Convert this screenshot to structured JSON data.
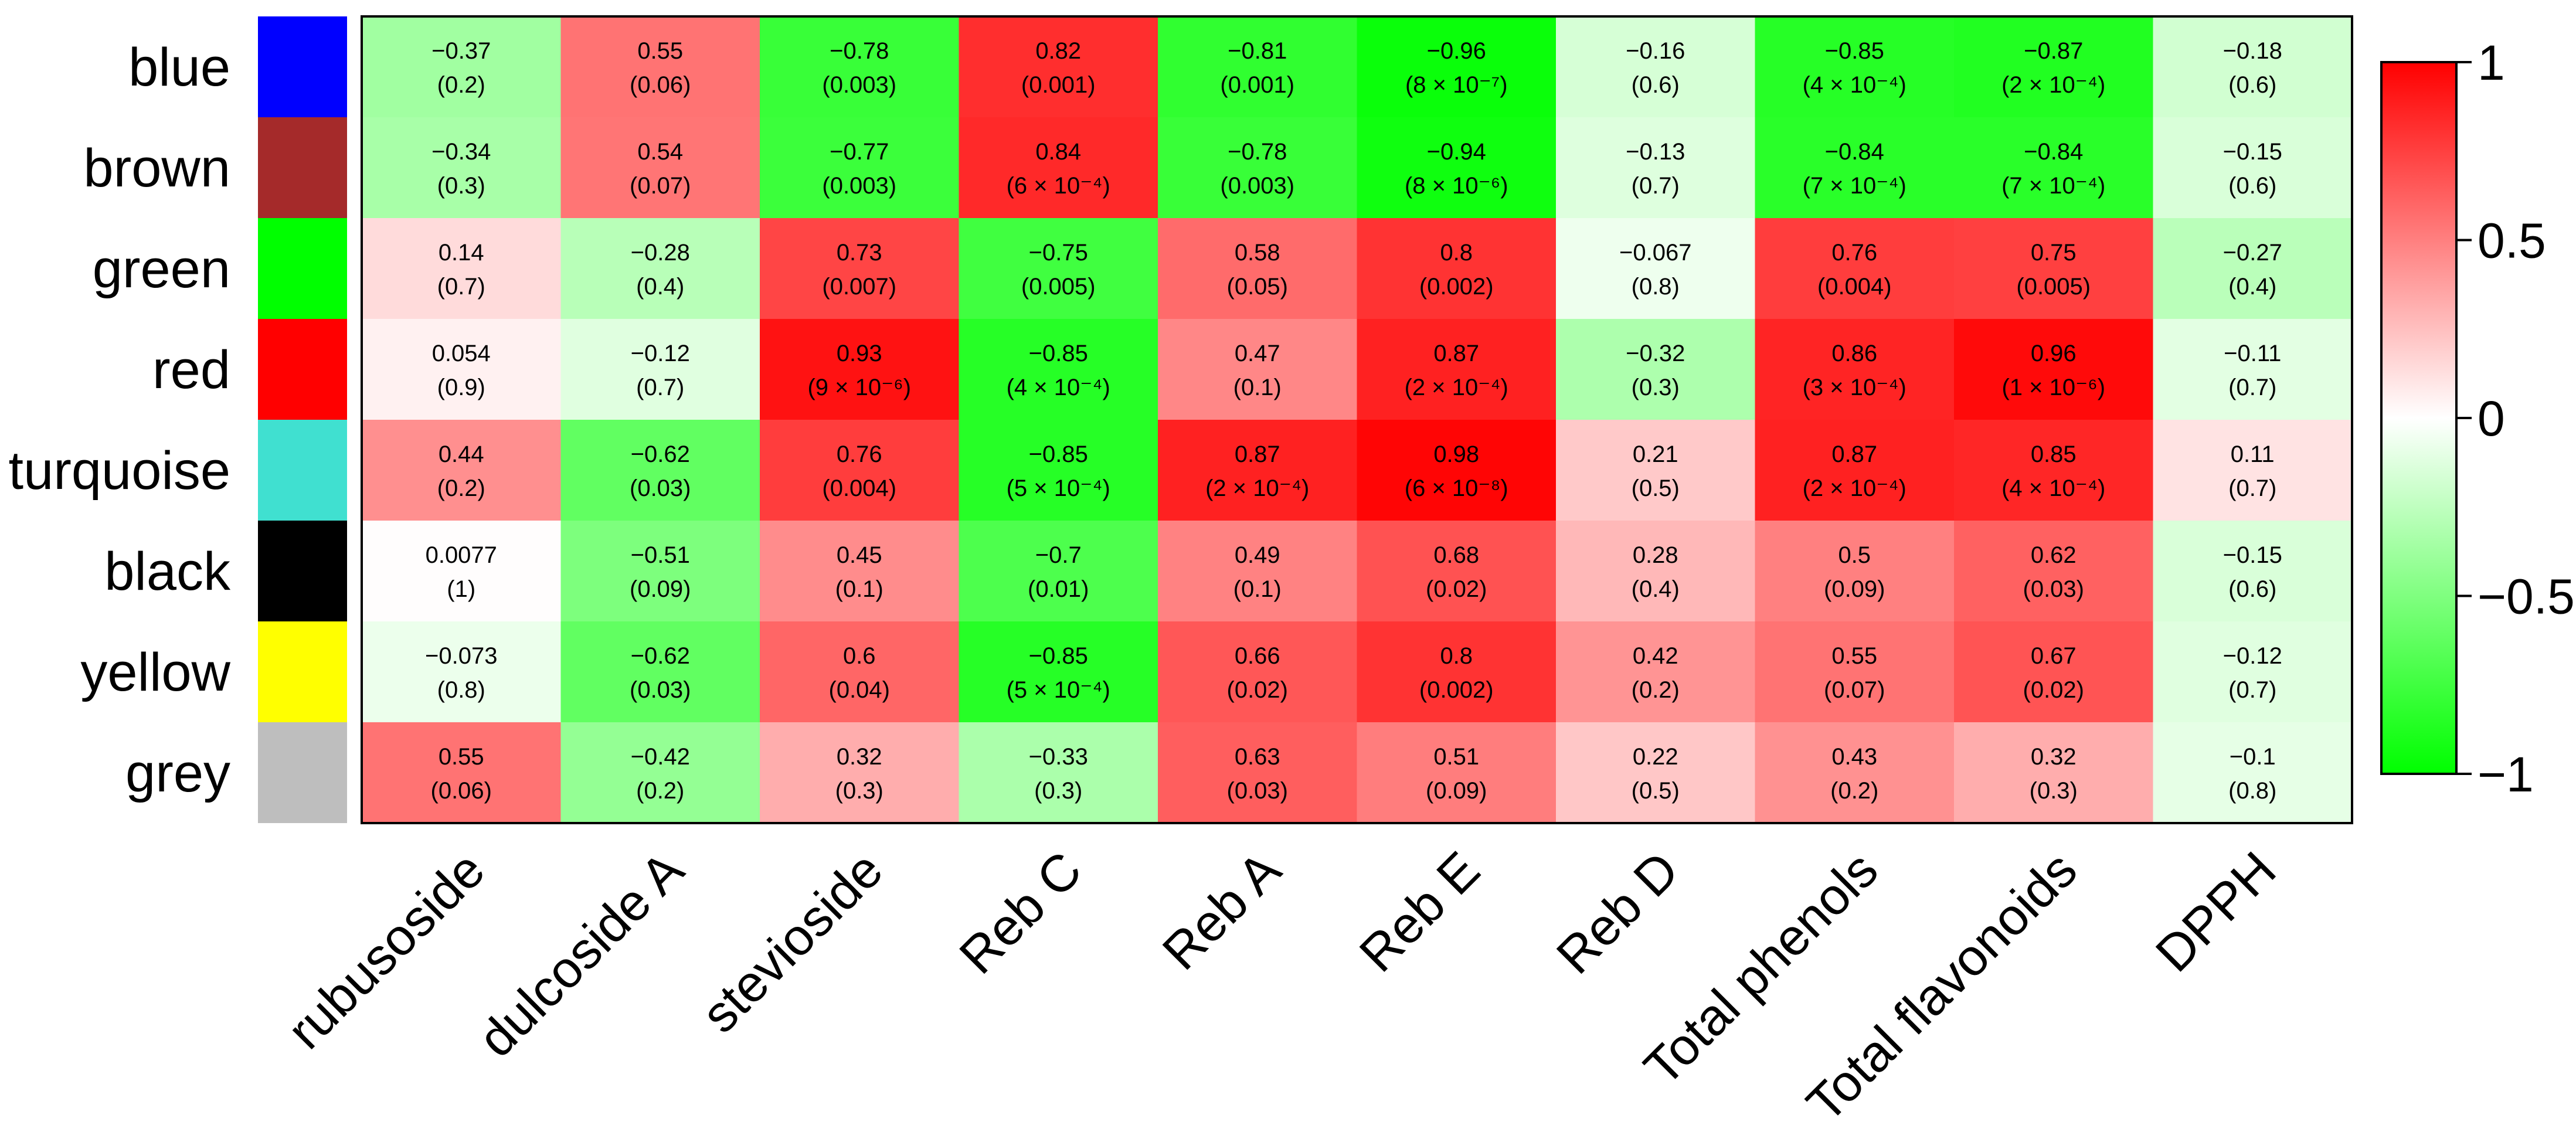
{
  "chart_data": {
    "type": "heatmap",
    "title": "",
    "rows": [
      "blue",
      "brown",
      "green",
      "red",
      "turquoise",
      "black",
      "yellow",
      "grey"
    ],
    "row_colors": [
      "#0000FF",
      "#A52A2A",
      "#00FF00",
      "#FF0000",
      "#40E0D0",
      "#000000",
      "#FFFF00",
      "#BEBEBE"
    ],
    "columns": [
      "rubusoside",
      "dulcoside A",
      "stevioside",
      "Reb C",
      "Reb A",
      "Reb E",
      "Reb D",
      "Total phenols",
      "Total flavonoids",
      "DPPH"
    ],
    "values": [
      [
        -0.37,
        0.55,
        -0.78,
        0.82,
        -0.81,
        -0.96,
        -0.16,
        -0.85,
        -0.87,
        -0.18
      ],
      [
        -0.34,
        0.54,
        -0.77,
        0.84,
        -0.78,
        -0.94,
        -0.13,
        -0.84,
        -0.84,
        -0.15
      ],
      [
        0.14,
        -0.28,
        0.73,
        -0.75,
        0.58,
        0.8,
        -0.067,
        0.76,
        0.75,
        -0.27
      ],
      [
        0.054,
        -0.12,
        0.93,
        -0.85,
        0.47,
        0.87,
        -0.32,
        0.86,
        0.96,
        -0.11
      ],
      [
        0.44,
        -0.62,
        0.76,
        -0.85,
        0.87,
        0.98,
        0.21,
        0.87,
        0.85,
        0.11
      ],
      [
        0.0077,
        -0.51,
        0.45,
        -0.7,
        0.49,
        0.68,
        0.28,
        0.5,
        0.62,
        -0.15
      ],
      [
        -0.073,
        -0.62,
        0.6,
        -0.85,
        0.66,
        0.8,
        0.42,
        0.55,
        0.67,
        -0.12
      ],
      [
        0.55,
        -0.42,
        0.32,
        -0.33,
        0.63,
        0.51,
        0.22,
        0.43,
        0.32,
        -0.1
      ]
    ],
    "value_labels": [
      [
        "−0.37",
        "0.55",
        "−0.78",
        "0.82",
        "−0.81",
        "−0.96",
        "−0.16",
        "−0.85",
        "−0.87",
        "−0.18"
      ],
      [
        "−0.34",
        "0.54",
        "−0.77",
        "0.84",
        "−0.78",
        "−0.94",
        "−0.13",
        "−0.84",
        "−0.84",
        "−0.15"
      ],
      [
        "0.14",
        "−0.28",
        "0.73",
        "−0.75",
        "0.58",
        "0.8",
        "−0.067",
        "0.76",
        "0.75",
        "−0.27"
      ],
      [
        "0.054",
        "−0.12",
        "0.93",
        "−0.85",
        "0.47",
        "0.87",
        "−0.32",
        "0.86",
        "0.96",
        "−0.11"
      ],
      [
        "0.44",
        "−0.62",
        "0.76",
        "−0.85",
        "0.87",
        "0.98",
        "0.21",
        "0.87",
        "0.85",
        "0.11"
      ],
      [
        "0.0077",
        "−0.51",
        "0.45",
        "−0.7",
        "0.49",
        "0.68",
        "0.28",
        "0.5",
        "0.62",
        "−0.15"
      ],
      [
        "−0.073",
        "−0.62",
        "0.6",
        "−0.85",
        "0.66",
        "0.8",
        "0.42",
        "0.55",
        "0.67",
        "−0.12"
      ],
      [
        "0.55",
        "−0.42",
        "0.32",
        "−0.33",
        "0.63",
        "0.51",
        "0.22",
        "0.43",
        "0.32",
        "−0.1"
      ]
    ],
    "pvalues": [
      [
        "(0.2)",
        "(0.06)",
        "(0.003)",
        "(0.001)",
        "(0.001)",
        "(8 × 10⁻⁷)",
        "(0.6)",
        "(4 × 10⁻⁴)",
        "(2 × 10⁻⁴)",
        "(0.6)"
      ],
      [
        "(0.3)",
        "(0.07)",
        "(0.003)",
        "(6 × 10⁻⁴)",
        "(0.003)",
        "(8 × 10⁻⁶)",
        "(0.7)",
        "(7 × 10⁻⁴)",
        "(7 × 10⁻⁴)",
        "(0.6)"
      ],
      [
        "(0.7)",
        "(0.4)",
        "(0.007)",
        "(0.005)",
        "(0.05)",
        "(0.002)",
        "(0.8)",
        "(0.004)",
        "(0.005)",
        "(0.4)"
      ],
      [
        "(0.9)",
        "(0.7)",
        "(9 × 10⁻⁶)",
        "(4 × 10⁻⁴)",
        "(0.1)",
        "(2 × 10⁻⁴)",
        "(0.3)",
        "(3 × 10⁻⁴)",
        "(1 × 10⁻⁶)",
        "(0.7)"
      ],
      [
        "(0.2)",
        "(0.03)",
        "(0.004)",
        "(5 × 10⁻⁴)",
        "(2 × 10⁻⁴)",
        "(6 × 10⁻⁸)",
        "(0.5)",
        "(2 × 10⁻⁴)",
        "(4 × 10⁻⁴)",
        "(0.7)"
      ],
      [
        "(1)",
        "(0.09)",
        "(0.1)",
        "(0.01)",
        "(0.1)",
        "(0.02)",
        "(0.4)",
        "(0.09)",
        "(0.03)",
        "(0.6)"
      ],
      [
        "(0.8)",
        "(0.03)",
        "(0.04)",
        "(5 × 10⁻⁴)",
        "(0.02)",
        "(0.002)",
        "(0.2)",
        "(0.07)",
        "(0.02)",
        "(0.7)"
      ],
      [
        "(0.06)",
        "(0.2)",
        "(0.3)",
        "(0.3)",
        "(0.03)",
        "(0.09)",
        "(0.5)",
        "(0.2)",
        "(0.3)",
        "(0.8)"
      ]
    ],
    "color_scale": {
      "min": -1,
      "max": 1,
      "low_color": "#00FF00",
      "mid_color": "#FFFFFF",
      "high_color": "#FF0000"
    },
    "legend": {
      "position": "right",
      "ticks": [
        1,
        0.5,
        0,
        -0.5,
        -1
      ],
      "tick_labels": [
        "1",
        "0.5",
        "0",
        "−0.5",
        "−1"
      ]
    }
  }
}
